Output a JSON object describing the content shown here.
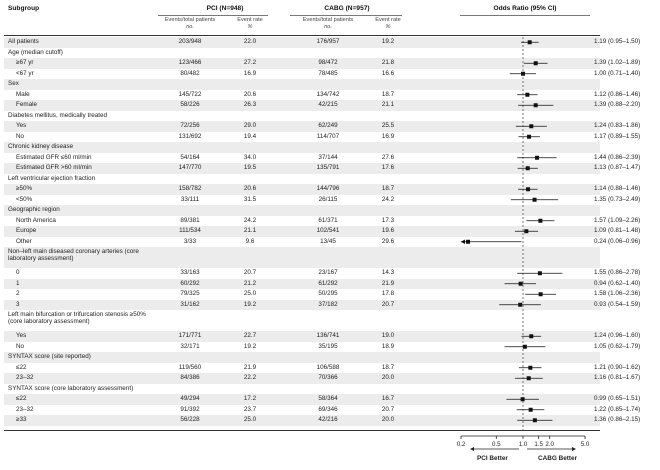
{
  "headers": {
    "subgroup": "Subgroup",
    "pci": "PCI (N=948)",
    "cabg": "CABG (N=957)",
    "or": "Odds Ratio (95% CI)",
    "events_total": "Events/total patients",
    "event_rate": "Event rate",
    "no": "no.",
    "pct": "%"
  },
  "rows": [
    {
      "label": "All patients",
      "indent": false,
      "pci_n": "203/948",
      "pci_r": "22.0",
      "cabg_n": "176/957",
      "cabg_r": "19.2",
      "ci": "1.19 (0.95–1.50)",
      "shade": true,
      "h": 1
    },
    {
      "label": "Age (median cutoff)",
      "indent": false,
      "shade": false,
      "h": 1
    },
    {
      "label": "≥67 yr",
      "indent": true,
      "pci_n": "123/466",
      "pci_r": "27.2",
      "cabg_n": "98/472",
      "cabg_r": "21.8",
      "ci": "1.39 (1.02–1.89)",
      "shade": true,
      "h": 1
    },
    {
      "label": "<67 yr",
      "indent": true,
      "pci_n": "80/482",
      "pci_r": "16.9",
      "cabg_n": "78/485",
      "cabg_r": "16.6",
      "ci": "1.00 (0.71–1.40)",
      "shade": false,
      "h": 1
    },
    {
      "label": "Sex",
      "indent": false,
      "shade": true,
      "h": 1
    },
    {
      "label": "Male",
      "indent": true,
      "pci_n": "145/722",
      "pci_r": "20.6",
      "cabg_n": "134/742",
      "cabg_r": "18.7",
      "ci": "1.12 (0.86–1.46)",
      "shade": false,
      "h": 1
    },
    {
      "label": "Female",
      "indent": true,
      "pci_n": "58/226",
      "pci_r": "26.3",
      "cabg_n": "42/215",
      "cabg_r": "21.1",
      "ci": "1.39 (0.88–2.20)",
      "shade": true,
      "h": 1
    },
    {
      "label": "Diabetes mellitus, medically treated",
      "indent": false,
      "shade": false,
      "h": 1
    },
    {
      "label": "Yes",
      "indent": true,
      "pci_n": "72/256",
      "pci_r": "29.0",
      "cabg_n": "62/249",
      "cabg_r": "25.5",
      "ci": "1.24 (0.83–1.86)",
      "shade": true,
      "h": 1
    },
    {
      "label": "No",
      "indent": true,
      "pci_n": "131/692",
      "pci_r": "19.4",
      "cabg_n": "114/707",
      "cabg_r": "16.9",
      "ci": "1.17 (0.89–1.55)",
      "shade": false,
      "h": 1
    },
    {
      "label": "Chronic kidney disease",
      "indent": false,
      "shade": true,
      "h": 1
    },
    {
      "label": "Estimated GFR ≤60 ml/min",
      "indent": true,
      "pci_n": "54/164",
      "pci_r": "34.0",
      "cabg_n": "37/144",
      "cabg_r": "27.6",
      "ci": "1.44 (0.86–2.39)",
      "shade": false,
      "h": 1
    },
    {
      "label": "Estimated GFR >60 ml/min",
      "indent": true,
      "pci_n": "147/770",
      "pci_r": "19.5",
      "cabg_n": "135/791",
      "cabg_r": "17.6",
      "ci": "1.13 (0.87–1.47)",
      "shade": true,
      "h": 1
    },
    {
      "label": "Left ventricular ejection fraction",
      "indent": false,
      "shade": false,
      "h": 1
    },
    {
      "label": "≥50%",
      "indent": true,
      "pci_n": "158/782",
      "pci_r": "20.6",
      "cabg_n": "144/796",
      "cabg_r": "18.7",
      "ci": "1.14 (0.88–1.46)",
      "shade": true,
      "h": 1
    },
    {
      "label": "<50%",
      "indent": true,
      "pci_n": "33/111",
      "pci_r": "31.5",
      "cabg_n": "26/115",
      "cabg_r": "24.2",
      "ci": "1.35 (0.73–2.49)",
      "shade": false,
      "h": 1
    },
    {
      "label": "Geographic region",
      "indent": false,
      "shade": true,
      "h": 1
    },
    {
      "label": "North America",
      "indent": true,
      "pci_n": "89/381",
      "pci_r": "24.2",
      "cabg_n": "61/371",
      "cabg_r": "17.3",
      "ci": "1.57 (1.09–2.26)",
      "shade": false,
      "h": 1
    },
    {
      "label": "Europe",
      "indent": true,
      "pci_n": "111/534",
      "pci_r": "21.1",
      "cabg_n": "102/541",
      "cabg_r": "19.6",
      "ci": "1.09 (0.81–1.48)",
      "shade": true,
      "h": 1
    },
    {
      "label": "Other",
      "indent": true,
      "pci_n": "3/33",
      "pci_r": "9.6",
      "cabg_n": "13/45",
      "cabg_r": "29.6",
      "ci": "0.24 (0.06–0.96)",
      "shade": false,
      "h": 1
    },
    {
      "label": "Non–left main diseased coronary arteries (core laboratory assessment)",
      "indent": false,
      "shade": true,
      "h": 2
    },
    {
      "label": "0",
      "indent": true,
      "pci_n": "33/163",
      "pci_r": "20.7",
      "cabg_n": "23/167",
      "cabg_r": "14.3",
      "ci": "1.55 (0.86–2.78)",
      "shade": false,
      "h": 1
    },
    {
      "label": "1",
      "indent": true,
      "pci_n": "60/292",
      "pci_r": "21.2",
      "cabg_n": "61/292",
      "cabg_r": "21.9",
      "ci": "0.94 (0.62–1.40)",
      "shade": true,
      "h": 1
    },
    {
      "label": "2",
      "indent": true,
      "pci_n": "79/325",
      "pci_r": "25.0",
      "cabg_n": "50/295",
      "cabg_r": "17.8",
      "ci": "1.58 (1.06–2.36)",
      "shade": false,
      "h": 1
    },
    {
      "label": "3",
      "indent": true,
      "pci_n": "31/162",
      "pci_r": "19.2",
      "cabg_n": "37/182",
      "cabg_r": "20.7",
      "ci": "0.93 (0.54–1.59)",
      "shade": true,
      "h": 1
    },
    {
      "label": "Left main bifurcation or trifurcation stenosis ≥50% (core laboratory assessment)",
      "indent": false,
      "shade": false,
      "h": 2
    },
    {
      "label": "Yes",
      "indent": true,
      "pci_n": "171/771",
      "pci_r": "22.7",
      "cabg_n": "136/741",
      "cabg_r": "19.0",
      "ci": "1.24 (0.96–1.60)",
      "shade": true,
      "h": 1
    },
    {
      "label": "No",
      "indent": true,
      "pci_n": "32/171",
      "pci_r": "19.2",
      "cabg_n": "35/195",
      "cabg_r": "18.9",
      "ci": "1.05 (0.62–1.79)",
      "shade": false,
      "h": 1
    },
    {
      "label": "SYNTAX score (site reported)",
      "indent": false,
      "shade": true,
      "h": 1
    },
    {
      "label": "≤22",
      "indent": true,
      "pci_n": "119/560",
      "pci_r": "21.9",
      "cabg_n": "106/588",
      "cabg_r": "18.7",
      "ci": "1.21 (0.90–1.62)",
      "shade": false,
      "h": 1
    },
    {
      "label": "23–32",
      "indent": true,
      "pci_n": "84/386",
      "pci_r": "22.2",
      "cabg_n": "70/366",
      "cabg_r": "20.0",
      "ci": "1.16 (0.81–1.67)",
      "shade": true,
      "h": 1
    },
    {
      "label": "SYNTAX score (core laboratory assessment)",
      "indent": false,
      "shade": false,
      "h": 1
    },
    {
      "label": "≤22",
      "indent": true,
      "pci_n": "49/294",
      "pci_r": "17.2",
      "cabg_n": "58/364",
      "cabg_r": "16.7",
      "ci": "0.99 (0.65–1.51)",
      "shade": true,
      "h": 1
    },
    {
      "label": "23–32",
      "indent": true,
      "pci_n": "91/392",
      "pci_r": "23.7",
      "cabg_n": "69/346",
      "cabg_r": "20.7",
      "ci": "1.22 (0.85–1.74)",
      "shade": false,
      "h": 1
    },
    {
      "label": "≥33",
      "indent": true,
      "pci_n": "56/228",
      "pci_r": "25.0",
      "cabg_n": "42/216",
      "cabg_r": "20.0",
      "ci": "1.36 (0.86–2.15)",
      "shade": true,
      "h": 1
    }
  ],
  "chart_data": {
    "type": "forest",
    "scale": "log",
    "xlim": [
      0.2,
      5.0
    ],
    "ticks": [
      0.2,
      0.5,
      1.0,
      1.5,
      2.0,
      5.0
    ],
    "tick_labels": [
      "0.2",
      "0.5",
      "1.0",
      "1.5",
      "2.0",
      "5.0"
    ],
    "reference": 1.0,
    "left_label": "PCI Better",
    "right_label": "CABG Better",
    "points": [
      {
        "label": "All patients",
        "or": 1.19,
        "lo": 0.95,
        "hi": 1.5
      },
      {
        "label": "≥67 yr",
        "or": 1.39,
        "lo": 1.02,
        "hi": 1.89
      },
      {
        "label": "<67 yr",
        "or": 1.0,
        "lo": 0.71,
        "hi": 1.4
      },
      {
        "label": "Male",
        "or": 1.12,
        "lo": 0.86,
        "hi": 1.46
      },
      {
        "label": "Female",
        "or": 1.39,
        "lo": 0.88,
        "hi": 2.2
      },
      {
        "label": "Diabetes Yes",
        "or": 1.24,
        "lo": 0.83,
        "hi": 1.86
      },
      {
        "label": "Diabetes No",
        "or": 1.17,
        "lo": 0.89,
        "hi": 1.55
      },
      {
        "label": "Estimated GFR ≤60 ml/min",
        "or": 1.44,
        "lo": 0.86,
        "hi": 2.39
      },
      {
        "label": "Estimated GFR >60 ml/min",
        "or": 1.13,
        "lo": 0.87,
        "hi": 1.47
      },
      {
        "label": "≥50%",
        "or": 1.14,
        "lo": 0.88,
        "hi": 1.46
      },
      {
        "label": "<50%",
        "or": 1.35,
        "lo": 0.73,
        "hi": 2.49
      },
      {
        "label": "North America",
        "or": 1.57,
        "lo": 1.09,
        "hi": 2.26
      },
      {
        "label": "Europe",
        "or": 1.09,
        "lo": 0.81,
        "hi": 1.48
      },
      {
        "label": "Other",
        "or": 0.24,
        "lo": 0.06,
        "hi": 0.96
      },
      {
        "label": "0",
        "or": 1.55,
        "lo": 0.86,
        "hi": 2.78
      },
      {
        "label": "1",
        "or": 0.94,
        "lo": 0.62,
        "hi": 1.4
      },
      {
        "label": "2",
        "or": 1.58,
        "lo": 1.06,
        "hi": 2.36
      },
      {
        "label": "3",
        "or": 0.93,
        "lo": 0.54,
        "hi": 1.59
      },
      {
        "label": "Bifurcation Yes",
        "or": 1.24,
        "lo": 0.96,
        "hi": 1.6
      },
      {
        "label": "Bifurcation No",
        "or": 1.05,
        "lo": 0.62,
        "hi": 1.79
      },
      {
        "label": "Site ≤22",
        "or": 1.21,
        "lo": 0.9,
        "hi": 1.62
      },
      {
        "label": "Site 23–32",
        "or": 1.16,
        "lo": 0.81,
        "hi": 1.67
      },
      {
        "label": "Core ≤22",
        "or": 0.99,
        "lo": 0.65,
        "hi": 1.51
      },
      {
        "label": "Core 23–32",
        "or": 1.22,
        "lo": 0.85,
        "hi": 1.74
      },
      {
        "label": "≥33",
        "or": 1.36,
        "lo": 0.86,
        "hi": 2.15
      }
    ]
  }
}
